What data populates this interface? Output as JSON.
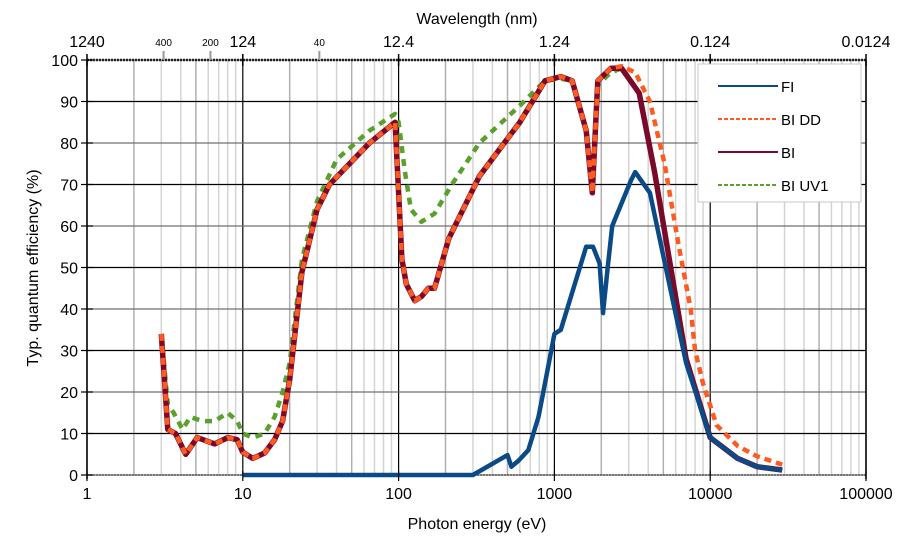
{
  "chart_data": {
    "type": "line",
    "xscale": "log",
    "xlabel": "Photon energy (eV)",
    "ylabel": "Typ. quantum efficiency (%)",
    "top_axis_title": "Wavelength (nm)",
    "xlim": [
      1,
      100000
    ],
    "ylim": [
      0,
      100
    ],
    "grid": true,
    "legend_position": "top-right",
    "x_ticks": [
      {
        "value": 1,
        "label": "1"
      },
      {
        "value": 10,
        "label": "10"
      },
      {
        "value": 100,
        "label": "100"
      },
      {
        "value": 1000,
        "label": "1000"
      },
      {
        "value": 10000,
        "label": "10000"
      },
      {
        "value": 100000,
        "label": "100000"
      }
    ],
    "y_ticks": [
      {
        "value": 0,
        "label": "0"
      },
      {
        "value": 10,
        "label": "10"
      },
      {
        "value": 20,
        "label": "20"
      },
      {
        "value": 30,
        "label": "30"
      },
      {
        "value": 40,
        "label": "40"
      },
      {
        "value": 50,
        "label": "50"
      },
      {
        "value": 60,
        "label": "60"
      },
      {
        "value": 70,
        "label": "70"
      },
      {
        "value": 80,
        "label": "80"
      },
      {
        "value": 90,
        "label": "90"
      },
      {
        "value": 100,
        "label": "100"
      }
    ],
    "top_ticks_major": [
      {
        "energy": 1,
        "label": "1240"
      },
      {
        "energy": 10,
        "label": "124"
      },
      {
        "energy": 100,
        "label": "12.4"
      },
      {
        "energy": 1000,
        "label": "1.24"
      },
      {
        "energy": 10000,
        "label": "0.124"
      },
      {
        "energy": 100000,
        "label": "0.0124"
      }
    ],
    "top_ticks_minor": [
      {
        "energy": 3.1,
        "label": "400"
      },
      {
        "energy": 6.2,
        "label": "200"
      },
      {
        "energy": 31,
        "label": "40"
      }
    ],
    "series": [
      {
        "name": "FI",
        "color": "#0a4a86",
        "style": "solid",
        "x": [
          10,
          300,
          500,
          530,
          590,
          680,
          790,
          890,
          1000,
          1100,
          1600,
          1770,
          1950,
          2050,
          2200,
          2350,
          3100,
          3300,
          4100,
          7000,
          10000,
          15000,
          20000,
          29000
        ],
        "y": [
          0,
          0,
          4.8,
          2,
          3.5,
          6,
          14,
          24,
          34,
          35,
          55,
          55,
          51,
          39,
          50,
          60,
          71,
          73,
          68,
          27,
          9,
          4,
          2,
          1.2
        ]
      },
      {
        "name": "BI DD",
        "color": "#ff5a1f",
        "style": "dashed",
        "x": [
          3.0,
          3.3,
          3.7,
          4.3,
          5.1,
          6.6,
          8,
          9.2,
          10,
          11.6,
          13.8,
          16,
          18,
          20,
          24,
          30,
          36,
          65,
          95,
          105,
          112,
          127,
          140,
          155,
          170,
          210,
          330,
          600,
          870,
          1100,
          1300,
          1600,
          1750,
          1900,
          2300,
          2700,
          3300,
          4100,
          5100,
          6300,
          7500,
          8000,
          9000,
          11000,
          15000,
          20000,
          29000
        ],
        "y": [
          34,
          11,
          10,
          5,
          9,
          7.5,
          9,
          8.5,
          5.5,
          4,
          5.3,
          8.5,
          13,
          23,
          49,
          64,
          70,
          80,
          85,
          52,
          46,
          42,
          43,
          45,
          45,
          57,
          72,
          85,
          95,
          96,
          95,
          83,
          68,
          95,
          98,
          98.5,
          97,
          90,
          75,
          55,
          40,
          30,
          22,
          12,
          7,
          4.5,
          2.5
        ]
      },
      {
        "name": "BI",
        "color": "#7a0a2a",
        "style": "solid",
        "x": [
          3.0,
          3.3,
          3.7,
          4.3,
          5.1,
          6.6,
          8,
          9.2,
          10,
          11.6,
          13.8,
          16,
          18,
          20,
          24,
          30,
          36,
          65,
          95,
          105,
          112,
          127,
          140,
          155,
          170,
          210,
          330,
          600,
          870,
          1100,
          1300,
          1600,
          1750,
          1900,
          2300,
          2700,
          3500,
          4400,
          7000,
          10000,
          15000,
          20000,
          29000
        ],
        "y": [
          34,
          11,
          10,
          5,
          9,
          7.5,
          9,
          8.5,
          5.5,
          4,
          5.3,
          8.5,
          13,
          23,
          49,
          64,
          70,
          80,
          85,
          52,
          46,
          42,
          43,
          45,
          45,
          57,
          72,
          85,
          95,
          96,
          95,
          83,
          68,
          95,
          98,
          98,
          92,
          73,
          28,
          9,
          4,
          2,
          1.2
        ]
      },
      {
        "name": "BI UV1",
        "color": "#5aa02c",
        "style": "dashed",
        "x": [
          3.0,
          3.3,
          3.6,
          4.1,
          4.6,
          5.5,
          6.6,
          8,
          9.2,
          10,
          11.6,
          13.8,
          16,
          18,
          20,
          24,
          30,
          40,
          65,
          95,
          100,
          110,
          120,
          140,
          170,
          220,
          330,
          600,
          870,
          1100,
          1300,
          1600,
          1750,
          1900,
          2300,
          2700,
          3500,
          4400,
          7000,
          10000,
          15000,
          20000,
          29000
        ],
        "y": [
          34,
          17,
          15,
          11,
          14,
          13,
          13,
          15,
          13,
          10,
          9,
          10,
          14,
          20,
          27,
          52,
          66,
          76,
          83,
          87,
          85,
          73,
          64,
          61,
          63,
          70,
          80,
          89,
          95,
          95.5,
          95,
          83,
          69,
          94,
          97,
          98,
          92,
          73,
          28,
          9,
          4,
          2,
          1.2
        ]
      }
    ]
  }
}
